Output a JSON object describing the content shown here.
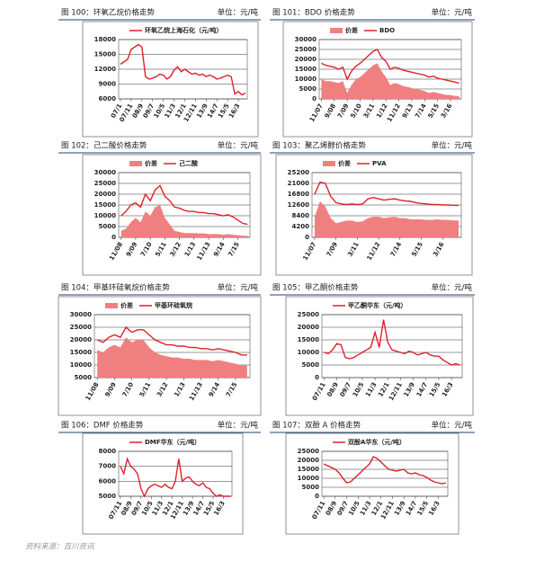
{
  "chart_data": [
    {
      "type": "line",
      "caption": "图 100：环氧乙烷价格走势",
      "unit": "单位：元/吨",
      "categories": [
        "07/1",
        null,
        null,
        "07/11",
        null,
        null,
        "08/9",
        null,
        null,
        "09/7",
        null,
        null,
        "10/5",
        null,
        null,
        "11/3",
        null,
        null,
        "12/1",
        null,
        null,
        "12/11",
        null,
        null,
        "13/9",
        null,
        null,
        "14/7",
        null,
        null,
        "15/5",
        null,
        null,
        "16/3",
        null,
        null
      ],
      "ylim": [
        6000,
        18000
      ],
      "yticks": [
        6000,
        9000,
        12000,
        15000,
        18000
      ],
      "series": [
        {
          "name": "环氧乙烷上海石化（元/吨）",
          "color": "#e0202a",
          "type": "line",
          "values": [
            13000,
            13500,
            14000,
            16000,
            16500,
            17000,
            16500,
            10500,
            10000,
            10200,
            10500,
            11000,
            10800,
            10000,
            10500,
            11800,
            12500,
            11500,
            12000,
            11500,
            11000,
            11200,
            10800,
            11000,
            10500,
            10800,
            10500,
            10000,
            10200,
            10500,
            10800,
            10500,
            7000,
            7500,
            6800,
            7200
          ]
        }
      ]
    },
    {
      "type": "combo",
      "caption": "图 101：BDO 价格走势",
      "unit": "单位：元/吨",
      "categories": [
        "11/07",
        null,
        null,
        "9/08",
        null,
        null,
        "7/09",
        null,
        null,
        "5/10",
        null,
        null,
        "3/11",
        null,
        null,
        "1/12",
        null,
        null,
        "11/12",
        null,
        null,
        "9/13",
        null,
        null,
        "7/14",
        null,
        null,
        "5/15",
        null,
        null,
        "3/16",
        null,
        null
      ],
      "ylim": [
        0,
        30000
      ],
      "yticks": [
        0,
        5000,
        10000,
        15000,
        20000,
        25000,
        30000
      ],
      "series": [
        {
          "name": "价差",
          "color": "#f08080",
          "type": "area",
          "values": [
            10000,
            9000,
            9000,
            8500,
            8000,
            9000,
            3000,
            7000,
            10000,
            11000,
            13000,
            15000,
            17000,
            18000,
            14000,
            11000,
            7000,
            8000,
            7500,
            6500,
            6000,
            5500,
            5000,
            4500,
            4000,
            3000,
            3500,
            3000,
            2500,
            2000,
            2000,
            1500,
            1500
          ]
        },
        {
          "name": "BDO",
          "color": "#e0202a",
          "type": "line",
          "values": [
            18000,
            17000,
            16500,
            16000,
            15000,
            16000,
            10000,
            14000,
            16500,
            18000,
            20000,
            22000,
            24000,
            25000,
            21000,
            19000,
            15000,
            16000,
            15500,
            14500,
            14000,
            13500,
            13000,
            12500,
            12000,
            11000,
            11500,
            10500,
            10000,
            9500,
            9000,
            8500,
            8000
          ]
        }
      ]
    },
    {
      "type": "combo",
      "caption": "图 102：己二酸价格走势",
      "unit": "单位：元/吨",
      "categories": [
        "11/08",
        null,
        null,
        "9/09",
        null,
        null,
        "7/10",
        null,
        null,
        "5/11",
        null,
        null,
        "3/12",
        null,
        null,
        "1/13",
        null,
        null,
        "11/13",
        null,
        null,
        "9/14",
        null,
        null,
        "7/15",
        null,
        null
      ],
      "ylim": [
        0,
        30000
      ],
      "yticks": [
        0,
        5000,
        10000,
        15000,
        20000,
        25000,
        30000
      ],
      "series": [
        {
          "name": "价差",
          "color": "#f08080",
          "type": "area",
          "values": [
            3000,
            4000,
            7000,
            9000,
            7000,
            12000,
            10000,
            14000,
            15000,
            9000,
            6000,
            3000,
            2500,
            2000,
            2000,
            2000,
            1800,
            1800,
            1500,
            1500,
            1500,
            1200,
            1500,
            1200,
            1000,
            800,
            800
          ]
        },
        {
          "name": "己二酸",
          "color": "#e0202a",
          "type": "line",
          "values": [
            10000,
            12000,
            15000,
            16000,
            14000,
            20000,
            17000,
            22000,
            24000,
            19000,
            17000,
            14000,
            13500,
            12500,
            12000,
            12000,
            11500,
            11500,
            11000,
            11000,
            10500,
            10000,
            10500,
            9500,
            8000,
            6500,
            6000
          ]
        }
      ]
    },
    {
      "type": "combo",
      "caption": "图 103：聚乙烯醇价格走势",
      "unit": "单位：元/吨",
      "categories": [
        "11/07",
        null,
        null,
        null,
        "7/09",
        null,
        null,
        null,
        "3/11",
        null,
        null,
        null,
        "11/12",
        null,
        null,
        null,
        "7/14",
        null,
        null,
        null,
        "5/15",
        null,
        null,
        null,
        "3/16",
        null,
        null,
        null
      ],
      "ylim": [
        0,
        25200
      ],
      "yticks": [
        0,
        4200,
        8400,
        12600,
        16800,
        21000,
        25200
      ],
      "series": [
        {
          "name": "价差",
          "color": "#f08080",
          "type": "area",
          "values": [
            8000,
            14000,
            12000,
            7500,
            5500,
            6000,
            6500,
            6500,
            6000,
            6200,
            7500,
            8000,
            8000,
            7500,
            7800,
            8000,
            7500,
            7500,
            7000,
            7000,
            7000,
            6800,
            6800,
            7000,
            6800,
            6800,
            6600,
            6500
          ]
        },
        {
          "name": "PVA",
          "color": "#e0202a",
          "type": "line",
          "values": [
            16800,
            21500,
            21000,
            16000,
            13500,
            13000,
            12800,
            13000,
            12800,
            13000,
            15000,
            15500,
            15000,
            14500,
            14800,
            15000,
            14500,
            14200,
            14000,
            13500,
            13200,
            13000,
            12800,
            12800,
            12600,
            12600,
            12500,
            12400
          ]
        }
      ]
    },
    {
      "type": "combo",
      "caption": "图 104：甲基环硅氧烷价格走势",
      "unit": "单位：元/吨",
      "categories": [
        "11/08",
        null,
        null,
        "9/09",
        null,
        null,
        "7/10",
        null,
        null,
        "5/11",
        null,
        null,
        "3/12",
        null,
        null,
        "1/13",
        null,
        null,
        "11/13",
        null,
        null,
        "9/14",
        null,
        null,
        "7/15",
        null,
        null
      ],
      "ylim": [
        5000,
        30000
      ],
      "yticks": [
        5000,
        10000,
        15000,
        20000,
        25000,
        30000
      ],
      "series": [
        {
          "name": "价差",
          "color": "#f08080",
          "type": "area",
          "values": [
            16000,
            15000,
            17000,
            18000,
            17000,
            21000,
            19000,
            20000,
            20000,
            17000,
            15000,
            14000,
            13500,
            13000,
            13000,
            12500,
            12500,
            12000,
            12000,
            12000,
            11500,
            12000,
            11500,
            11000,
            10500,
            10000,
            10000
          ]
        },
        {
          "name": "甲基环硅氧烷",
          "color": "#e0202a",
          "type": "line",
          "values": [
            20000,
            19000,
            21000,
            22000,
            21000,
            25000,
            23000,
            24000,
            24000,
            22000,
            20000,
            19000,
            18000,
            18000,
            17500,
            17500,
            17000,
            17000,
            16500,
            16500,
            16000,
            16500,
            16000,
            15500,
            15000,
            14000,
            14000
          ]
        }
      ]
    },
    {
      "type": "line",
      "caption": "图 105：甲乙酮价格走势",
      "unit": "单位：元/吨",
      "categories": [
        "07/11",
        null,
        null,
        "08/9",
        null,
        null,
        "09/7",
        null,
        null,
        "10/5",
        null,
        null,
        "11/3",
        null,
        null,
        "12/1",
        null,
        null,
        "12/11",
        null,
        null,
        "13/9",
        null,
        null,
        "14/7",
        null,
        null,
        "15/5",
        null,
        null,
        "16/3",
        null,
        null
      ],
      "ylim": [
        0,
        25000
      ],
      "yticks": [
        0,
        5000,
        10000,
        15000,
        20000,
        25000
      ],
      "series": [
        {
          "name": "甲乙酮华东（元/吨）",
          "color": "#e0202a",
          "type": "line",
          "values": [
            10000,
            9500,
            11000,
            13500,
            13000,
            8000,
            7500,
            8000,
            9000,
            10000,
            11000,
            12000,
            18000,
            12000,
            23000,
            14000,
            11000,
            10500,
            10000,
            9500,
            10500,
            10000,
            9000,
            9500,
            10000,
            9000,
            8500,
            8500,
            7000,
            6000,
            5000,
            5500,
            5000
          ]
        }
      ]
    },
    {
      "type": "line",
      "caption": "图 106：DMF 价格走势",
      "unit": "单位：元/吨",
      "categories": [
        "07/11",
        null,
        null,
        "08/9",
        null,
        null,
        "09/7",
        null,
        null,
        "10/5",
        null,
        null,
        "11/3",
        null,
        null,
        "12/1",
        null,
        null,
        "12/11",
        null,
        null,
        "13/9",
        null,
        null,
        "14/7",
        null,
        null,
        "15/5",
        null,
        null,
        "16/3",
        null,
        null
      ],
      "ylim": [
        5000,
        8000
      ],
      "yticks": [
        5000,
        6000,
        7000,
        8000
      ],
      "series": [
        {
          "name": "DMF华东（元/吨）",
          "color": "#e0202a",
          "type": "line",
          "values": [
            7000,
            6500,
            7500,
            7000,
            6800,
            6500,
            5500,
            5000,
            5500,
            5700,
            5800,
            5700,
            5600,
            5800,
            5600,
            5500,
            6000,
            7500,
            6000,
            6200,
            6300,
            6000,
            5800,
            5700,
            5900,
            5600,
            5500,
            5200,
            5000,
            5100,
            5000,
            5000,
            5000
          ]
        }
      ]
    },
    {
      "type": "line",
      "caption": "图 107：双酚 A 价格走势",
      "unit": "单位：元/吨",
      "categories": [
        "07/11",
        null,
        null,
        "08/9",
        null,
        null,
        "09/7",
        null,
        null,
        "10/5",
        null,
        null,
        "11/3",
        null,
        null,
        "12/1",
        null,
        null,
        "12/11",
        null,
        null,
        "13/9",
        null,
        null,
        "14/7",
        null,
        null,
        "15/5",
        null,
        null,
        "16/3",
        null,
        null
      ],
      "ylim": [
        0,
        25000
      ],
      "yticks": [
        0,
        5000,
        10000,
        15000,
        20000,
        25000
      ],
      "series": [
        {
          "name": "双酚A华东（元/吨）",
          "color": "#e0202a",
          "type": "line",
          "values": [
            18000,
            17000,
            16000,
            15000,
            13000,
            10000,
            7500,
            8000,
            10000,
            12000,
            14000,
            16000,
            18000,
            22000,
            21000,
            19000,
            17000,
            15000,
            14500,
            14000,
            14500,
            15000,
            13000,
            12500,
            13000,
            12000,
            11500,
            10500,
            9000,
            8000,
            7500,
            7000,
            7500
          ]
        }
      ]
    }
  ],
  "footer": "资料来源：百川资讯"
}
